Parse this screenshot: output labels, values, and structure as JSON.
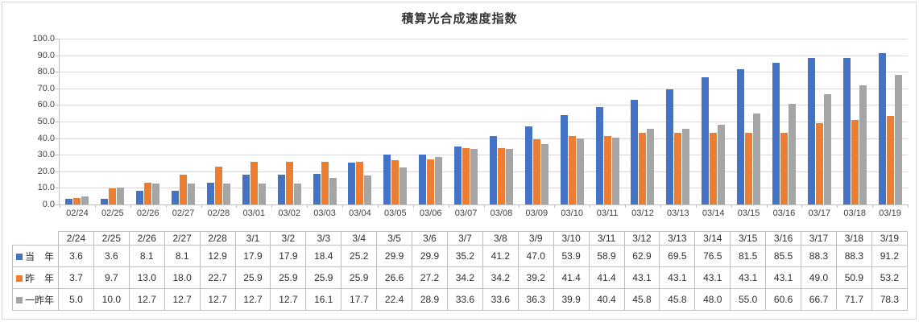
{
  "chart_data": {
    "type": "bar",
    "title": "積算光合成速度指数",
    "xlabel": "",
    "ylabel": "",
    "ylim": [
      0,
      100
    ],
    "grid": true,
    "legend_position": "table-left-column",
    "y_tick_labels": [
      "100.0",
      "90.0",
      "80.0",
      "70.0",
      "60.0",
      "50.0",
      "40.0",
      "30.0",
      "20.0",
      "10.0",
      "0.0"
    ],
    "categories_axis": [
      "02/24",
      "02/25",
      "02/26",
      "02/27",
      "02/28",
      "03/01",
      "03/02",
      "03/03",
      "03/04",
      "03/05",
      "03/06",
      "03/07",
      "03/08",
      "03/09",
      "03/10",
      "03/11",
      "03/12",
      "03/13",
      "03/14",
      "03/15",
      "03/16",
      "03/17",
      "03/18",
      "03/19"
    ],
    "categories_table": [
      "2/24",
      "2/25",
      "2/26",
      "2/27",
      "2/28",
      "3/1",
      "3/2",
      "3/3",
      "3/4",
      "3/5",
      "3/6",
      "3/7",
      "3/8",
      "3/9",
      "3/10",
      "3/11",
      "3/12",
      "3/13",
      "3/14",
      "3/15",
      "3/16",
      "3/17",
      "3/18",
      "3/19"
    ],
    "series": [
      {
        "name": "当　年",
        "color": "#4472C4",
        "values": [
          3.6,
          3.6,
          8.1,
          8.1,
          12.9,
          17.9,
          17.9,
          18.4,
          25.2,
          29.9,
          29.9,
          35.2,
          41.2,
          47.0,
          53.9,
          58.9,
          62.9,
          69.5,
          76.5,
          81.5,
          85.5,
          88.3,
          88.3,
          91.2
        ]
      },
      {
        "name": "昨　年",
        "color": "#ED7D31",
        "values": [
          3.7,
          9.7,
          13.0,
          18.0,
          22.7,
          25.9,
          25.9,
          25.9,
          25.9,
          26.6,
          27.2,
          34.2,
          34.2,
          39.2,
          41.4,
          41.4,
          43.1,
          43.1,
          43.1,
          43.1,
          43.1,
          49.0,
          50.9,
          53.2
        ]
      },
      {
        "name": "一昨年",
        "color": "#A5A5A5",
        "values": [
          5.0,
          10.0,
          12.7,
          12.7,
          12.7,
          12.7,
          12.7,
          16.1,
          17.7,
          22.4,
          28.9,
          33.6,
          33.6,
          36.3,
          39.9,
          40.4,
          45.8,
          45.8,
          48.0,
          55.0,
          60.6,
          66.7,
          71.7,
          78.3
        ]
      }
    ],
    "colors": {
      "gridline": "#D9D9D9",
      "axis": "#BFBFBF",
      "table_border": "#BFBFBF",
      "frame_border": "#D6D6D6"
    }
  }
}
